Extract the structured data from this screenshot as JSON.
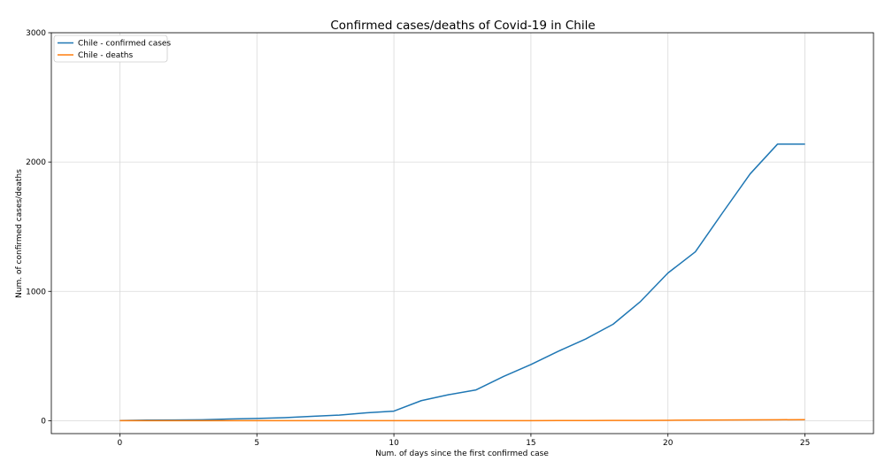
{
  "chart_data": {
    "type": "line",
    "title": "Confirmed cases/deaths of Covid-19 in Chile",
    "xlabel": "Num. of days since the first confirmed case",
    "ylabel": "Num. of confirmed cases/deaths",
    "xlim": [
      -2.5,
      27.5
    ],
    "ylim": [
      -100,
      3000
    ],
    "xticks": [
      0,
      5,
      10,
      15,
      20,
      25
    ],
    "yticks": [
      0,
      1000,
      2000,
      3000
    ],
    "grid": true,
    "legend_position": "top-left",
    "x": [
      0,
      1,
      2,
      3,
      4,
      5,
      6,
      7,
      8,
      9,
      10,
      11,
      12,
      13,
      14,
      15,
      16,
      17,
      18,
      19,
      20,
      21,
      22,
      23,
      24,
      25
    ],
    "series": [
      {
        "name": "Chile - confirmed cases",
        "color": "#1f77b4",
        "values": [
          1,
          4,
          5,
          7,
          13,
          17,
          23,
          33,
          43,
          61,
          74,
          155,
          201,
          238,
          342,
          434,
          537,
          632,
          746,
          922,
          1142,
          1306,
          1610,
          1909,
          2139,
          2139
        ]
      },
      {
        "name": "Chile - deaths",
        "color": "#ff7f0e",
        "values": [
          0,
          0,
          0,
          0,
          0,
          0,
          0,
          0,
          0,
          0,
          0,
          0,
          0,
          0,
          0,
          0,
          1,
          1,
          2,
          2,
          3,
          4,
          5,
          6,
          7,
          8
        ]
      }
    ]
  }
}
